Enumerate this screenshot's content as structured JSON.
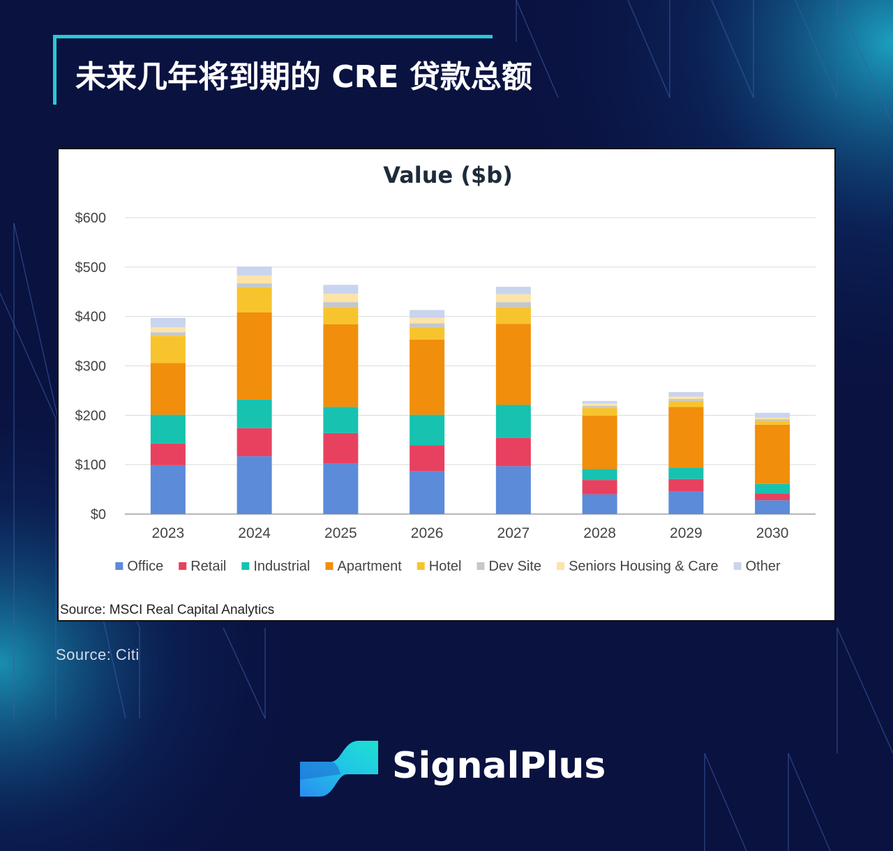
{
  "header": {
    "title": "未来几年将到期的 CRE 贷款总额"
  },
  "chart_data": {
    "type": "bar",
    "stacked": true,
    "title": "Value ($b)",
    "categories": [
      "2023",
      "2024",
      "2025",
      "2026",
      "2027",
      "2028",
      "2029",
      "2030"
    ],
    "ylim": [
      0,
      600
    ],
    "yticks": [
      "$0",
      "$100",
      "$200",
      "$300",
      "$400",
      "$500",
      "$600"
    ],
    "legend_position": "bottom",
    "grid": true,
    "series": [
      {
        "name": "Office",
        "color": "#5b8bd9",
        "values": [
          99,
          117,
          103,
          87,
          97,
          40,
          46,
          28
        ]
      },
      {
        "name": "Retail",
        "color": "#e8415f",
        "values": [
          44,
          57,
          61,
          52,
          57,
          29,
          25,
          14
        ]
      },
      {
        "name": "Industrial",
        "color": "#17c2b0",
        "values": [
          58,
          58,
          53,
          62,
          67,
          22,
          23,
          19
        ]
      },
      {
        "name": "Apartment",
        "color": "#f18e0b",
        "values": [
          105,
          176,
          167,
          152,
          164,
          108,
          123,
          120
        ]
      },
      {
        "name": "Hotel",
        "color": "#f8c42d",
        "values": [
          55,
          51,
          35,
          24,
          34,
          16,
          12,
          8
        ]
      },
      {
        "name": "Dev Site",
        "color": "#c4c8cc",
        "values": [
          7,
          8,
          10,
          9,
          10,
          4,
          4,
          3
        ]
      },
      {
        "name": "Seniors Housing & Care",
        "color": "#fde3a8",
        "values": [
          10,
          16,
          17,
          11,
          16,
          5,
          5,
          3
        ]
      },
      {
        "name": "Other",
        "color": "#c9d4ef",
        "values": [
          19,
          18,
          18,
          16,
          15,
          5,
          9,
          10
        ]
      }
    ]
  },
  "chart_source": "Source: MSCI Real Capital Analytics",
  "page_source": "Source: Citi",
  "brand": {
    "name": "SignalPlus",
    "logo_icon": "signalplus-logo-icon"
  }
}
